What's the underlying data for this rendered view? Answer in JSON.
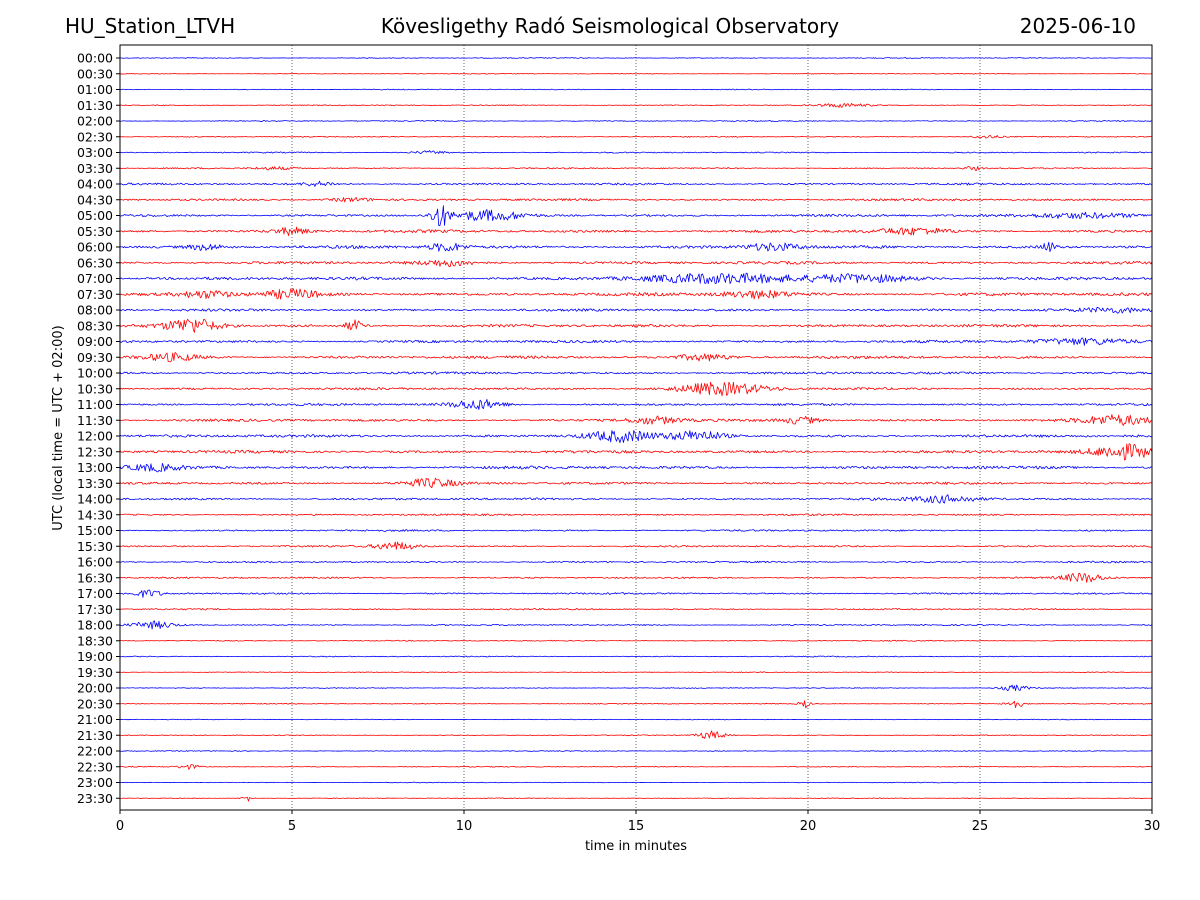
{
  "header": {
    "station": "HU_Station_LTVH",
    "title": "Kövesligethy Radó Seismological Observatory",
    "date": "2025-06-10"
  },
  "chart_data": {
    "type": "line",
    "title": "Kövesligethy Radó Seismological Observatory",
    "xlabel": "time in minutes",
    "ylabel": "UTC (local time = UTC + 02:00)",
    "xlim": [
      0,
      30
    ],
    "xticks": [
      0,
      5,
      10,
      15,
      20,
      25,
      30
    ],
    "grid": "vertical dotted at 5-minute ticks",
    "colors": [
      "#0000ff",
      "#ff0000"
    ],
    "row_labels": [
      "00:00",
      "00:30",
      "01:00",
      "01:30",
      "02:00",
      "02:30",
      "03:00",
      "03:30",
      "04:00",
      "04:30",
      "05:00",
      "05:30",
      "06:00",
      "06:30",
      "07:00",
      "07:30",
      "08:00",
      "08:30",
      "09:00",
      "09:30",
      "10:00",
      "10:30",
      "11:00",
      "11:30",
      "12:00",
      "12:30",
      "13:00",
      "13:30",
      "14:00",
      "14:30",
      "15:00",
      "15:30",
      "16:00",
      "16:30",
      "17:00",
      "17:30",
      "18:00",
      "18:30",
      "19:00",
      "19:30",
      "20:00",
      "20:30",
      "21:00",
      "21:30",
      "22:00",
      "22:30",
      "23:00",
      "23:30"
    ],
    "noise_level": [
      0.3,
      0.25,
      0.3,
      0.35,
      0.35,
      0.35,
      0.4,
      0.45,
      0.7,
      0.75,
      0.85,
      1.0,
      1.05,
      0.95,
      1.05,
      1.1,
      0.85,
      0.95,
      0.9,
      1.0,
      0.8,
      0.85,
      0.8,
      0.9,
      0.95,
      1.0,
      1.0,
      0.85,
      0.75,
      0.6,
      0.6,
      0.6,
      0.55,
      0.55,
      0.6,
      0.5,
      0.45,
      0.35,
      0.35,
      0.3,
      0.3,
      0.3,
      0.25,
      0.3,
      0.3,
      0.3,
      0.25,
      0.25
    ],
    "events": [
      {
        "row": 3,
        "t": 21.0,
        "amp": 1.5,
        "dur": 1.5
      },
      {
        "row": 5,
        "t": 25.2,
        "amp": 1.4,
        "dur": 0.8
      },
      {
        "row": 6,
        "t": 9.0,
        "amp": 1.3,
        "dur": 1.0
      },
      {
        "row": 7,
        "t": 4.5,
        "amp": 1.3,
        "dur": 1.2
      },
      {
        "row": 7,
        "t": 24.8,
        "amp": 1.6,
        "dur": 0.5
      },
      {
        "row": 8,
        "t": 5.8,
        "amp": 1.8,
        "dur": 1.0
      },
      {
        "row": 9,
        "t": 6.7,
        "amp": 1.7,
        "dur": 1.2
      },
      {
        "row": 10,
        "t": 9.3,
        "amp": 9.0,
        "dur": 0.5
      },
      {
        "row": 10,
        "t": 10.7,
        "amp": 4.0,
        "dur": 2.0
      },
      {
        "row": 10,
        "t": 28.0,
        "amp": 2.5,
        "dur": 3.0
      },
      {
        "row": 11,
        "t": 5.0,
        "amp": 3.0,
        "dur": 1.0
      },
      {
        "row": 11,
        "t": 23.0,
        "amp": 2.5,
        "dur": 2.0
      },
      {
        "row": 12,
        "t": 2.5,
        "amp": 2.5,
        "dur": 1.0
      },
      {
        "row": 12,
        "t": 9.5,
        "amp": 3.5,
        "dur": 1.0
      },
      {
        "row": 12,
        "t": 19.0,
        "amp": 3.0,
        "dur": 1.5
      },
      {
        "row": 12,
        "t": 27.0,
        "amp": 4.0,
        "dur": 0.4
      },
      {
        "row": 13,
        "t": 9.5,
        "amp": 2.5,
        "dur": 1.5
      },
      {
        "row": 14,
        "t": 17.5,
        "amp": 3.5,
        "dur": 5.0
      },
      {
        "row": 14,
        "t": 21.5,
        "amp": 3.0,
        "dur": 3.0
      },
      {
        "row": 15,
        "t": 2.5,
        "amp": 3.0,
        "dur": 1.5
      },
      {
        "row": 15,
        "t": 5.0,
        "amp": 3.5,
        "dur": 1.5
      },
      {
        "row": 15,
        "t": 18.5,
        "amp": 3.0,
        "dur": 2.0
      },
      {
        "row": 16,
        "t": 29.0,
        "amp": 2.0,
        "dur": 2.0
      },
      {
        "row": 17,
        "t": 2.1,
        "amp": 6.0,
        "dur": 1.5
      },
      {
        "row": 17,
        "t": 6.8,
        "amp": 4.5,
        "dur": 0.5
      },
      {
        "row": 18,
        "t": 28.0,
        "amp": 2.5,
        "dur": 3.0
      },
      {
        "row": 19,
        "t": 1.5,
        "amp": 3.0,
        "dur": 1.5
      },
      {
        "row": 19,
        "t": 17.0,
        "amp": 2.5,
        "dur": 1.5
      },
      {
        "row": 21,
        "t": 17.5,
        "amp": 5.0,
        "dur": 2.5
      },
      {
        "row": 22,
        "t": 10.4,
        "amp": 4.0,
        "dur": 1.5
      },
      {
        "row": 23,
        "t": 15.5,
        "amp": 3.0,
        "dur": 1.5
      },
      {
        "row": 23,
        "t": 19.8,
        "amp": 3.0,
        "dur": 1.0
      },
      {
        "row": 23,
        "t": 29.0,
        "amp": 4.0,
        "dur": 2.0
      },
      {
        "row": 24,
        "t": 14.5,
        "amp": 4.5,
        "dur": 2.0
      },
      {
        "row": 24,
        "t": 16.8,
        "amp": 4.0,
        "dur": 1.5
      },
      {
        "row": 25,
        "t": 29.2,
        "amp": 6.0,
        "dur": 1.8
      },
      {
        "row": 26,
        "t": 1.0,
        "amp": 2.5,
        "dur": 1.5
      },
      {
        "row": 27,
        "t": 9.0,
        "amp": 3.5,
        "dur": 1.5
      },
      {
        "row": 28,
        "t": 24.0,
        "amp": 3.0,
        "dur": 2.0
      },
      {
        "row": 31,
        "t": 8.0,
        "amp": 3.5,
        "dur": 1.2
      },
      {
        "row": 33,
        "t": 28.0,
        "amp": 4.0,
        "dur": 1.2
      },
      {
        "row": 34,
        "t": 0.8,
        "amp": 3.0,
        "dur": 0.8
      },
      {
        "row": 36,
        "t": 1.0,
        "amp": 3.0,
        "dur": 1.2
      },
      {
        "row": 40,
        "t": 26.0,
        "amp": 2.5,
        "dur": 0.8
      },
      {
        "row": 41,
        "t": 19.9,
        "amp": 3.5,
        "dur": 0.3
      },
      {
        "row": 41,
        "t": 26.0,
        "amp": 4.0,
        "dur": 0.5
      },
      {
        "row": 43,
        "t": 17.2,
        "amp": 3.5,
        "dur": 0.8
      },
      {
        "row": 45,
        "t": 2.0,
        "amp": 2.0,
        "dur": 0.6
      },
      {
        "row": 47,
        "t": 3.7,
        "amp": 2.5,
        "dur": 0.3
      }
    ]
  }
}
